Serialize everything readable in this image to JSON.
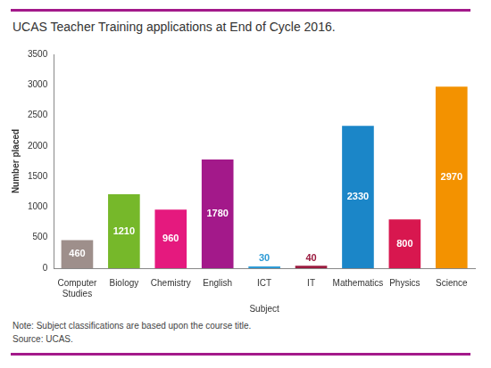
{
  "chart_data": {
    "type": "bar",
    "title": "UCAS Teacher Training applications at End of Cycle 2016.",
    "xlabel": "Subject",
    "ylabel": "Number placed",
    "categories": [
      "Computer Studies",
      "Biology",
      "Chemistry",
      "English",
      "ICT",
      "IT",
      "Mathematics",
      "Physics",
      "Science"
    ],
    "values": [
      460,
      1210,
      960,
      1780,
      30,
      40,
      2330,
      800,
      2970
    ],
    "colors": [
      "#9e8f8b",
      "#76b82a",
      "#e5197e",
      "#a3198a",
      "#2e9bd6",
      "#9b1b3f",
      "#1b86c8",
      "#d8174f",
      "#f39200"
    ],
    "ylim": [
      0,
      3500
    ],
    "yticks": [
      0,
      500,
      1000,
      1500,
      2000,
      2500,
      3000,
      3500
    ],
    "grid": false,
    "data_labels": true,
    "notes": [
      "Note: Subject classifications are based upon the course title.",
      "Source: UCAS."
    ]
  }
}
